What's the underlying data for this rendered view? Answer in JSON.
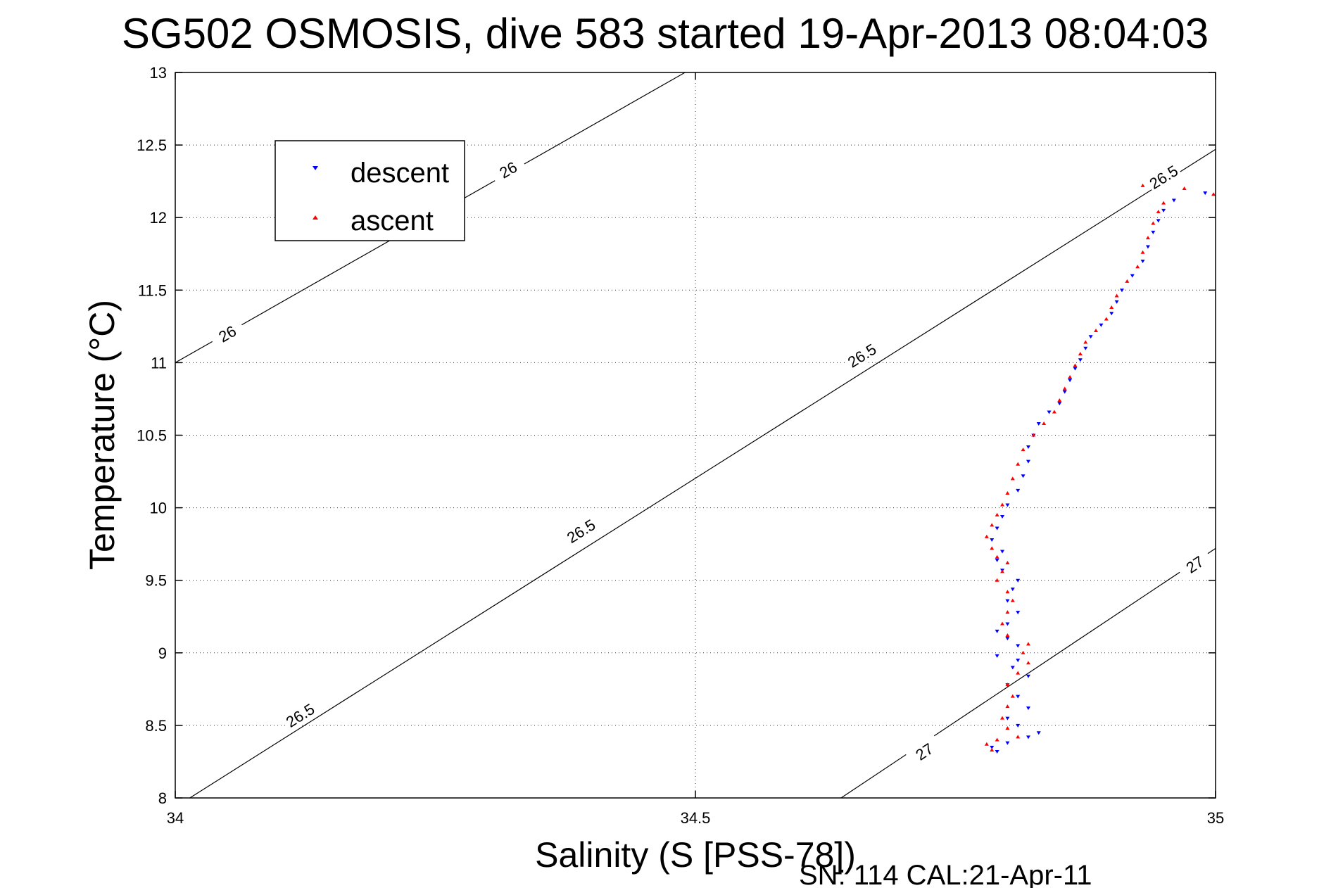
{
  "chart_data": {
    "type": "scatter",
    "title": "SG502 OSMOSIS, dive 583 started 19-Apr-2013 08:04:03",
    "xlabel": "Salinity (S [PSS-78])",
    "ylabel": "Temperature (°C)",
    "xlim": [
      34,
      35
    ],
    "ylim": [
      8,
      13
    ],
    "xticks": [
      "34",
      "34.5",
      "35"
    ],
    "yticks": [
      "8",
      "8.5",
      "9",
      "9.5",
      "10",
      "10.5",
      "11",
      "11.5",
      "12",
      "12.5",
      "13"
    ],
    "grid": true,
    "legend_position": "top-left",
    "footer": "SN: 114  CAL:21-Apr-11",
    "contours": [
      {
        "label": "26",
        "points": [
          [
            34.0,
            11.0
          ],
          [
            34.49,
            13.0
          ]
        ],
        "label_positions": [
          [
            34.05,
            11.2
          ],
          [
            34.32,
            12.33
          ]
        ]
      },
      {
        "label": "26.5",
        "points": [
          [
            34.014,
            8.0
          ],
          [
            35.0,
            12.47
          ]
        ],
        "label_positions": [
          [
            34.12,
            8.57
          ],
          [
            34.39,
            9.84
          ],
          [
            34.66,
            11.05
          ],
          [
            34.95,
            12.28
          ]
        ]
      },
      {
        "label": "27",
        "points": [
          [
            34.64,
            8.0
          ],
          [
            35.0,
            9.72
          ]
        ],
        "label_positions": [
          [
            34.72,
            8.32
          ],
          [
            34.98,
            9.61
          ]
        ]
      }
    ],
    "series": [
      {
        "name": "descent",
        "color": "#0000ff",
        "marker": "triangle-down",
        "points": [
          [
            34.79,
            8.32
          ],
          [
            34.785,
            8.35
          ],
          [
            34.8,
            8.38
          ],
          [
            34.82,
            8.42
          ],
          [
            34.83,
            8.45
          ],
          [
            34.81,
            8.5
          ],
          [
            34.8,
            8.55
          ],
          [
            34.82,
            8.62
          ],
          [
            34.81,
            8.7
          ],
          [
            34.8,
            8.78
          ],
          [
            34.82,
            8.84
          ],
          [
            34.805,
            8.9
          ],
          [
            34.81,
            8.95
          ],
          [
            34.79,
            8.98
          ],
          [
            34.81,
            9.05
          ],
          [
            34.8,
            9.1
          ],
          [
            34.79,
            9.15
          ],
          [
            34.8,
            9.2
          ],
          [
            34.81,
            9.28
          ],
          [
            34.8,
            9.36
          ],
          [
            34.805,
            9.44
          ],
          [
            34.81,
            9.5
          ],
          [
            34.795,
            9.57
          ],
          [
            34.79,
            9.64
          ],
          [
            34.795,
            9.7
          ],
          [
            34.785,
            9.78
          ],
          [
            34.79,
            9.86
          ],
          [
            34.795,
            9.94
          ],
          [
            34.8,
            10.02
          ],
          [
            34.81,
            10.12
          ],
          [
            34.815,
            10.22
          ],
          [
            34.82,
            10.32
          ],
          [
            34.82,
            10.42
          ],
          [
            34.825,
            10.5
          ],
          [
            34.83,
            10.58
          ],
          [
            34.84,
            10.66
          ],
          [
            34.85,
            10.72
          ],
          [
            34.855,
            10.8
          ],
          [
            34.86,
            10.88
          ],
          [
            34.865,
            10.96
          ],
          [
            34.87,
            11.02
          ],
          [
            34.875,
            11.1
          ],
          [
            34.88,
            11.18
          ],
          [
            34.89,
            11.26
          ],
          [
            34.9,
            11.34
          ],
          [
            34.905,
            11.42
          ],
          [
            34.91,
            11.5
          ],
          [
            34.92,
            11.6
          ],
          [
            34.93,
            11.7
          ],
          [
            34.935,
            11.8
          ],
          [
            34.94,
            11.9
          ],
          [
            34.945,
            11.98
          ],
          [
            34.95,
            12.05
          ],
          [
            34.96,
            12.12
          ],
          [
            34.99,
            12.17
          ]
        ]
      },
      {
        "name": "ascent",
        "color": "#ff0000",
        "marker": "triangle-up",
        "points": [
          [
            34.785,
            8.33
          ],
          [
            34.78,
            8.37
          ],
          [
            34.79,
            8.4
          ],
          [
            34.81,
            8.42
          ],
          [
            34.8,
            8.48
          ],
          [
            34.795,
            8.55
          ],
          [
            34.8,
            8.63
          ],
          [
            34.805,
            8.7
          ],
          [
            34.8,
            8.78
          ],
          [
            34.81,
            8.86
          ],
          [
            34.82,
            8.93
          ],
          [
            34.815,
            9.0
          ],
          [
            34.82,
            9.06
          ],
          [
            34.8,
            9.12
          ],
          [
            34.795,
            9.2
          ],
          [
            34.8,
            9.28
          ],
          [
            34.805,
            9.36
          ],
          [
            34.8,
            9.42
          ],
          [
            34.79,
            9.5
          ],
          [
            34.795,
            9.56
          ],
          [
            34.8,
            9.62
          ],
          [
            34.79,
            9.66
          ],
          [
            34.785,
            9.72
          ],
          [
            34.78,
            9.8
          ],
          [
            34.785,
            9.88
          ],
          [
            34.79,
            9.95
          ],
          [
            34.795,
            10.02
          ],
          [
            34.8,
            10.1
          ],
          [
            34.805,
            10.2
          ],
          [
            34.81,
            10.3
          ],
          [
            34.815,
            10.4
          ],
          [
            34.825,
            10.5
          ],
          [
            34.835,
            10.58
          ],
          [
            34.845,
            10.66
          ],
          [
            34.85,
            10.74
          ],
          [
            34.855,
            10.82
          ],
          [
            34.86,
            10.9
          ],
          [
            34.865,
            10.98
          ],
          [
            34.87,
            11.06
          ],
          [
            34.875,
            11.14
          ],
          [
            34.885,
            11.22
          ],
          [
            34.895,
            11.3
          ],
          [
            34.9,
            11.38
          ],
          [
            34.905,
            11.46
          ],
          [
            34.915,
            11.56
          ],
          [
            34.925,
            11.66
          ],
          [
            34.93,
            11.76
          ],
          [
            34.935,
            11.86
          ],
          [
            34.94,
            11.96
          ],
          [
            34.945,
            12.04
          ],
          [
            34.95,
            12.1
          ],
          [
            34.93,
            12.22
          ],
          [
            34.97,
            12.2
          ],
          [
            34.998,
            12.16
          ]
        ]
      }
    ]
  }
}
